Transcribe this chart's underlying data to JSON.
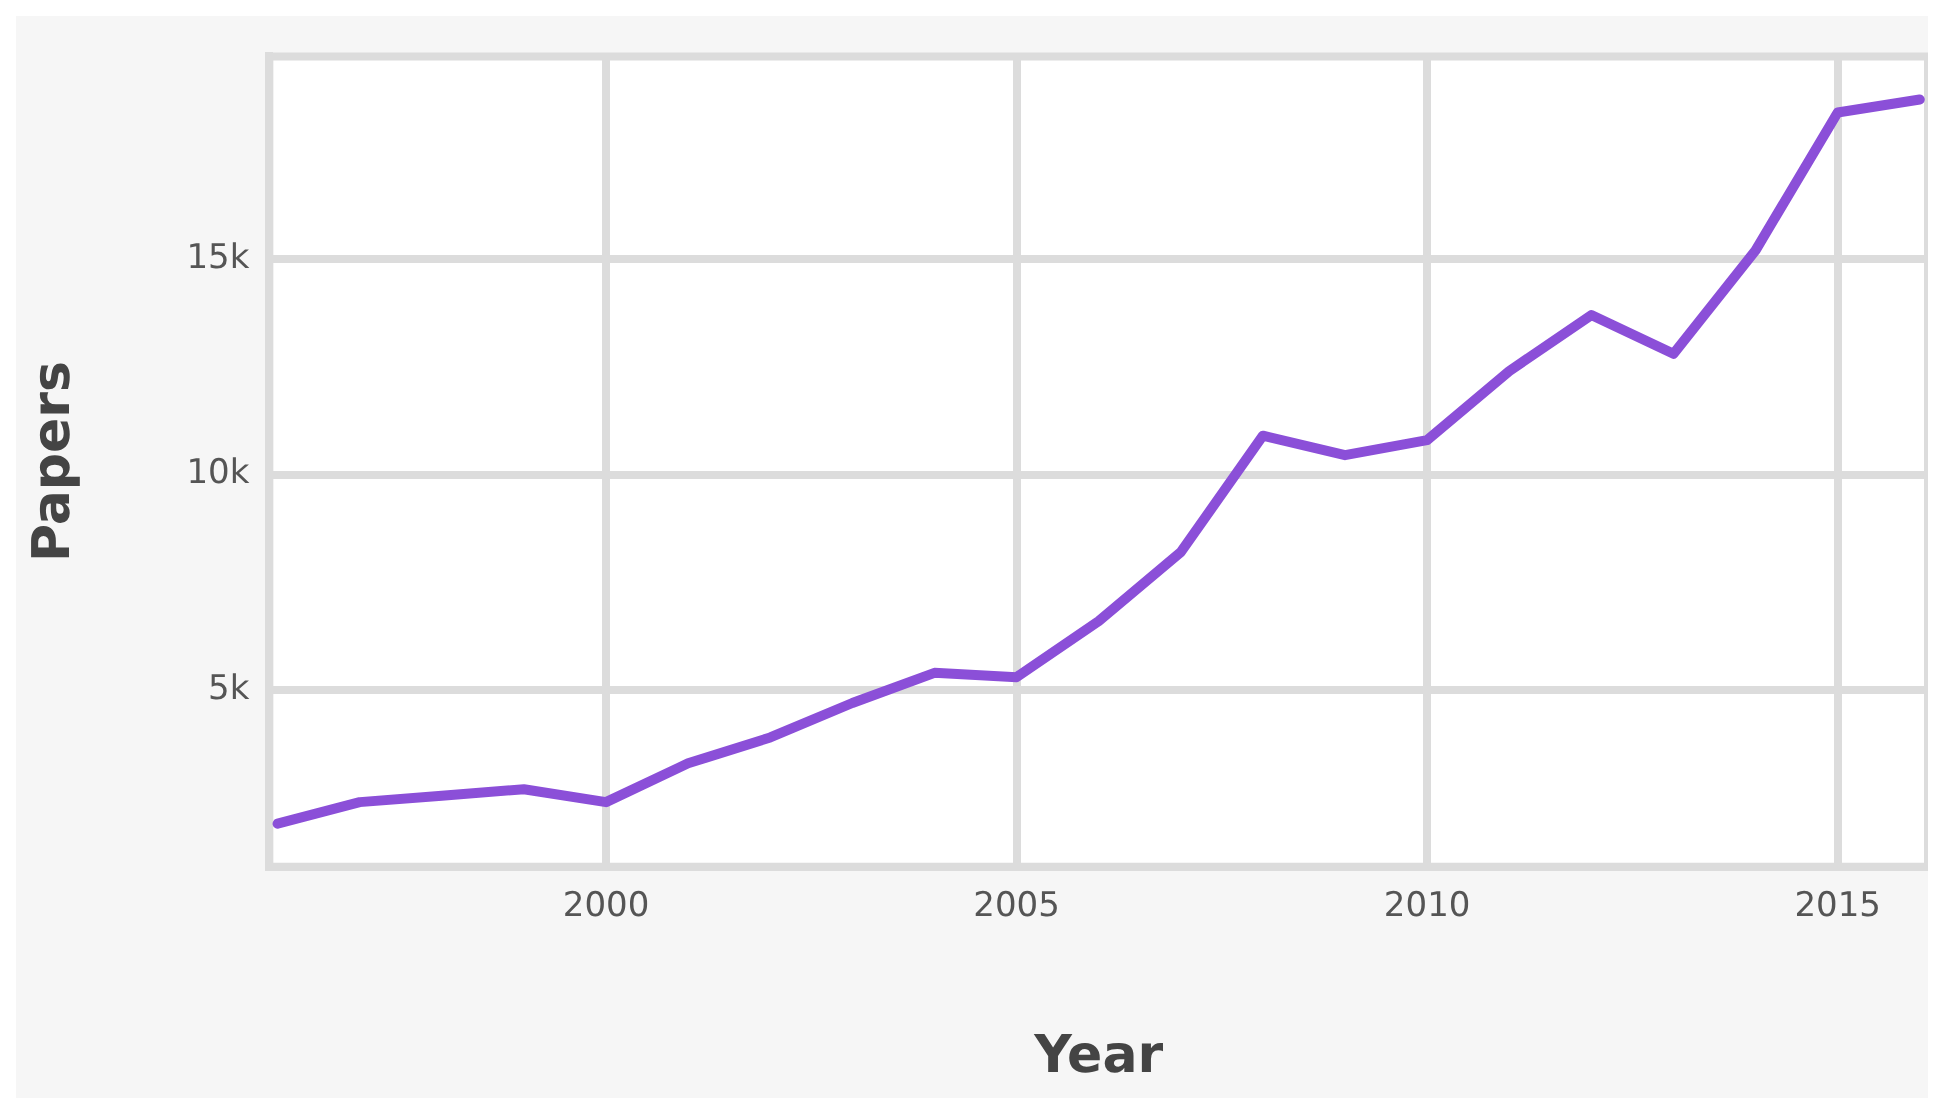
{
  "chart_data": {
    "type": "line",
    "xlabel": "Year",
    "ylabel": "Papers",
    "x": [
      1996,
      1997,
      1998,
      1999,
      2000,
      2001,
      2002,
      2003,
      2004,
      2005,
      2006,
      2007,
      2008,
      2009,
      2010,
      2011,
      2012,
      2013,
      2014,
      2015,
      2016
    ],
    "series": [
      {
        "color": "#8b4fd8",
        "values": [
          1900,
          2400,
          2550,
          2700,
          2400,
          3300,
          3900,
          4700,
          5400,
          5300,
          6600,
          8200,
          10900,
          10450,
          10800,
          12400,
          13700,
          12800,
          15200,
          18400,
          18700
        ]
      }
    ],
    "xlim": [
      1995.9,
      2016.1
    ],
    "xticks": [
      2000,
      2005,
      2010,
      2015
    ],
    "ylim": [
      900,
      19700
    ],
    "yticks": [
      {
        "value": 5000,
        "label": "5k"
      },
      {
        "value": 10000,
        "label": "10k"
      },
      {
        "value": 15000,
        "label": "15k"
      }
    ],
    "grid": true,
    "legend": false,
    "marker": "none",
    "line_style": "solid"
  }
}
